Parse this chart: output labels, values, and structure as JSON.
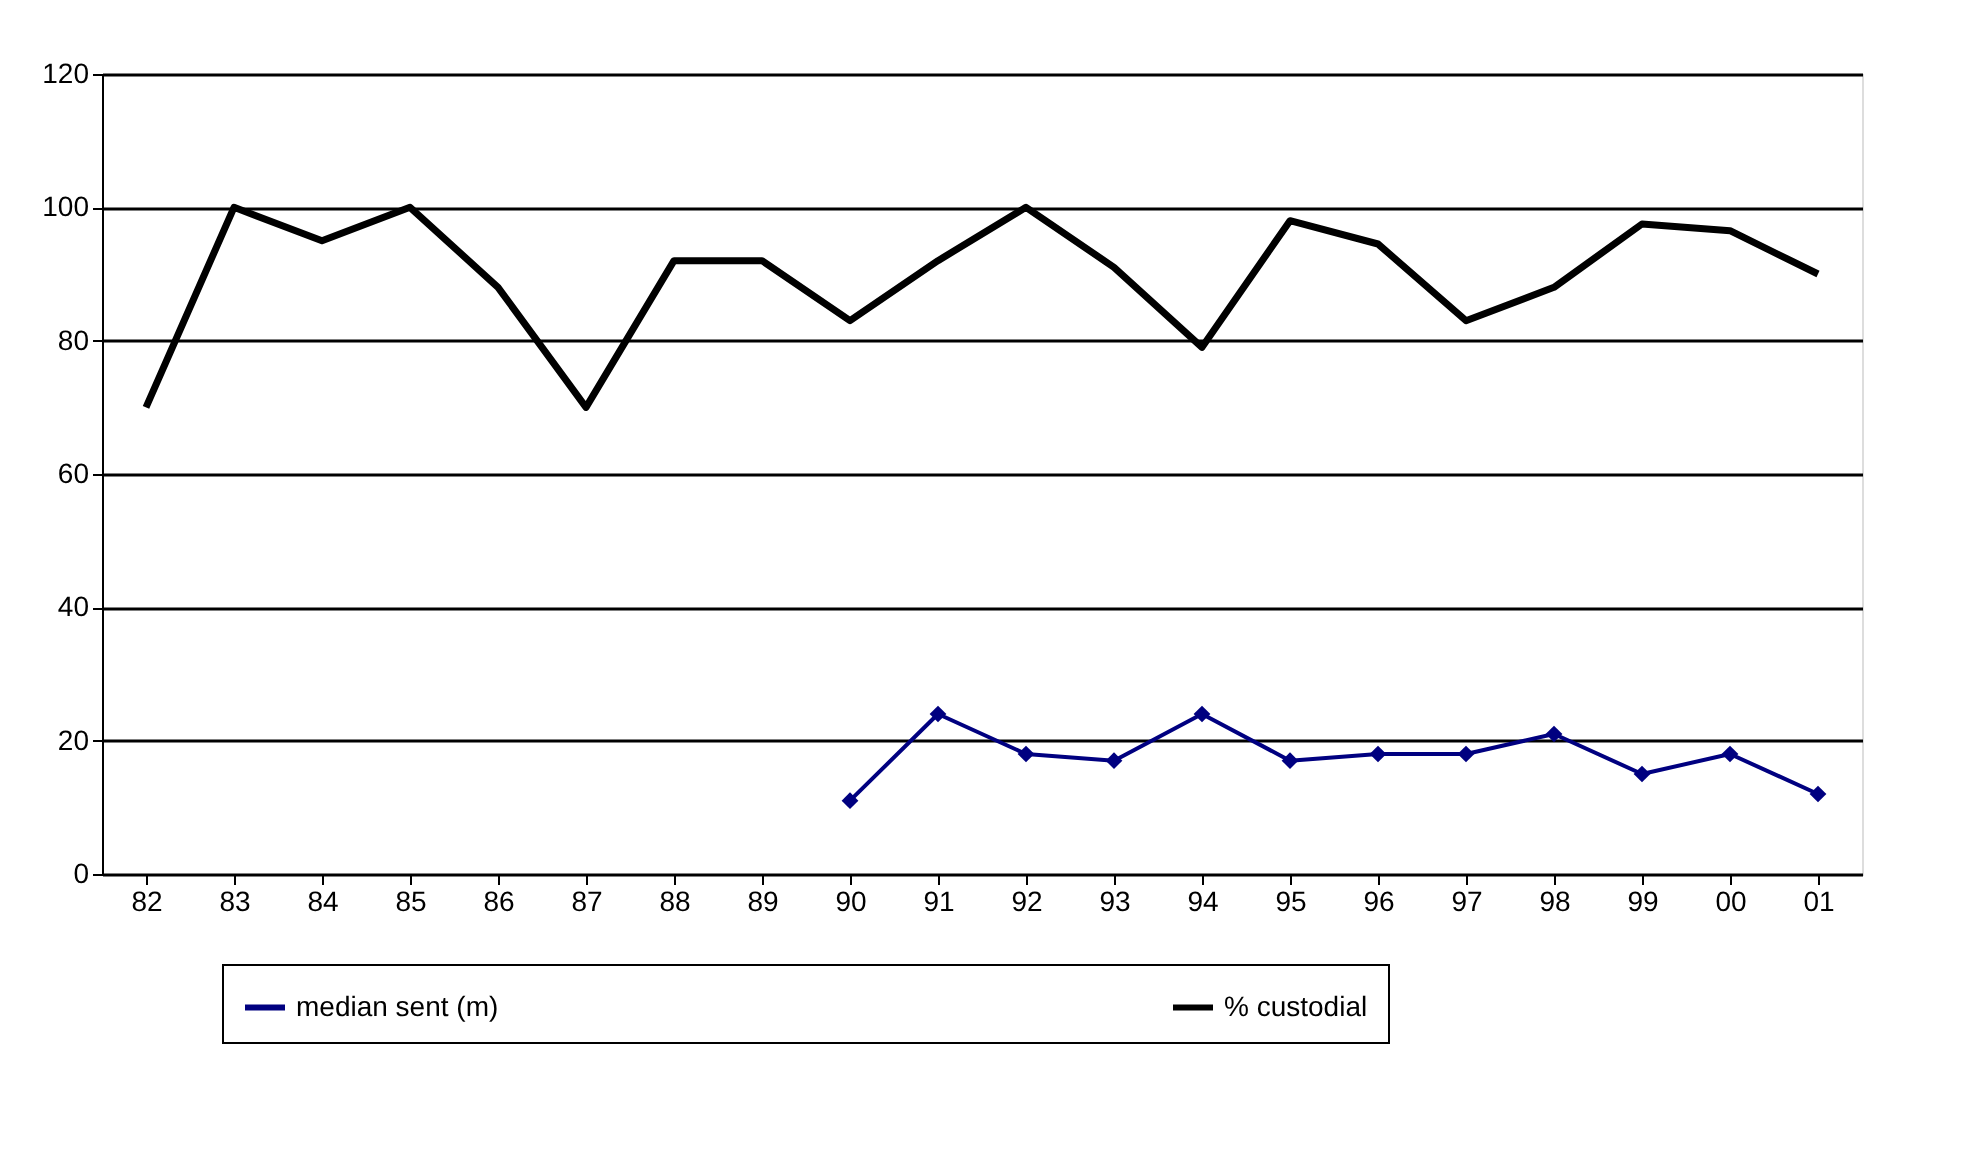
{
  "chart_data": {
    "type": "line",
    "categories": [
      "82",
      "83",
      "84",
      "85",
      "86",
      "87",
      "88",
      "89",
      "90",
      "91",
      "92",
      "93",
      "94",
      "95",
      "96",
      "97",
      "98",
      "99",
      "00",
      "01"
    ],
    "series": [
      {
        "name": "median sent (m)",
        "color": "#000080",
        "marker": "diamond",
        "values": [
          null,
          null,
          null,
          null,
          null,
          null,
          null,
          null,
          11,
          24,
          18,
          17,
          24,
          17,
          18,
          18,
          21,
          15,
          18,
          12
        ]
      },
      {
        "name": "% custodial",
        "color": "#000000",
        "marker": "none",
        "values": [
          70,
          100,
          95,
          100,
          88,
          70,
          92,
          92,
          83,
          92,
          100,
          91,
          79,
          98,
          94.5,
          83,
          88,
          97.5,
          96.5,
          90
        ]
      }
    ],
    "ylim": [
      0,
      120
    ],
    "yticks": [
      0,
      20,
      40,
      60,
      80,
      100,
      120
    ],
    "grid": "y",
    "legend": "bottom"
  }
}
